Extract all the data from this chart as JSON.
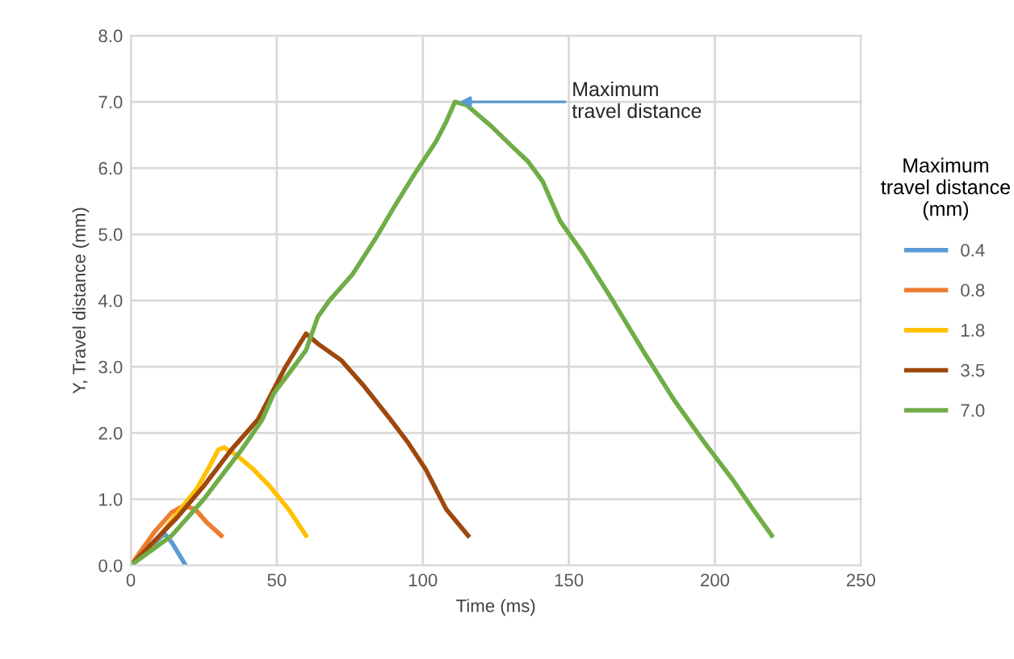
{
  "chart_data": {
    "type": "line",
    "xlabel": "Time (ms)",
    "ylabel": "Y, Travel distance (mm)",
    "legend_title": "Maximum\ntravel distance\n(mm)",
    "legend": "right",
    "grid": true,
    "marker": "none",
    "line_style": "solid",
    "xlim": [
      0,
      250
    ],
    "xticks": [
      0,
      50,
      100,
      150,
      200,
      250
    ],
    "ylim": [
      0,
      8
    ],
    "yticks": [
      {
        "value": 0,
        "label": "0.0"
      },
      {
        "value": 1,
        "label": "1.0"
      },
      {
        "value": 2,
        "label": "2.0"
      },
      {
        "value": 3,
        "label": "3.0"
      },
      {
        "value": 4,
        "label": "4.0"
      },
      {
        "value": 5,
        "label": "5.0"
      },
      {
        "value": 6,
        "label": "6.0"
      },
      {
        "value": 7,
        "label": "7.0"
      },
      {
        "value": 8,
        "label": "8.0"
      }
    ],
    "annotations": [
      {
        "text": "Maximum\ntravel distance",
        "x": 111,
        "y": 7.0
      }
    ],
    "series": [
      {
        "name": "0.4",
        "color": "#5b9bd5",
        "x": [
          0,
          6,
          11.5,
          14,
          18.8
        ],
        "values": [
          0,
          0.25,
          0.48,
          0.35,
          0
        ]
      },
      {
        "name": "0.8",
        "color": "#ed7d31",
        "x": [
          0,
          8,
          14,
          18,
          22,
          26,
          31
        ],
        "values": [
          0,
          0.5,
          0.8,
          0.9,
          0.85,
          0.65,
          0.45
        ]
      },
      {
        "name": "1.8",
        "color": "#ffc000",
        "x": [
          0,
          10,
          17,
          22.5,
          27,
          30,
          32,
          36,
          42,
          47.5,
          54,
          60
        ],
        "values": [
          0,
          0.45,
          0.85,
          1.15,
          1.5,
          1.75,
          1.78,
          1.67,
          1.45,
          1.2,
          0.85,
          0.45
        ]
      },
      {
        "name": "3.5",
        "color": "#9e480e",
        "x": [
          0,
          16,
          25,
          34.5,
          43.5,
          53,
          60,
          64,
          72,
          80,
          89,
          95,
          101,
          108,
          115.5
        ],
        "values": [
          0,
          0.73,
          1.2,
          1.75,
          2.2,
          3.0,
          3.5,
          3.35,
          3.1,
          2.7,
          2.2,
          1.85,
          1.45,
          0.85,
          0.45
        ]
      },
      {
        "name": "7.0",
        "color": "#70ad47",
        "x": [
          0,
          14,
          25,
          34.5,
          38,
          45,
          49,
          55,
          60,
          64,
          68,
          76,
          84,
          90,
          97,
          104.5,
          108,
          111,
          115,
          123,
          130,
          136,
          141,
          144,
          147,
          155,
          165,
          176,
          186,
          196.5,
          206,
          213,
          219.5
        ],
        "values": [
          0,
          0.45,
          1.0,
          1.55,
          1.75,
          2.2,
          2.6,
          2.95,
          3.25,
          3.75,
          4.0,
          4.4,
          4.95,
          5.4,
          5.9,
          6.4,
          6.7,
          7.0,
          6.95,
          6.65,
          6.35,
          6.1,
          5.8,
          5.5,
          5.2,
          4.7,
          4.0,
          3.2,
          2.5,
          1.85,
          1.3,
          0.85,
          0.45
        ]
      }
    ]
  }
}
